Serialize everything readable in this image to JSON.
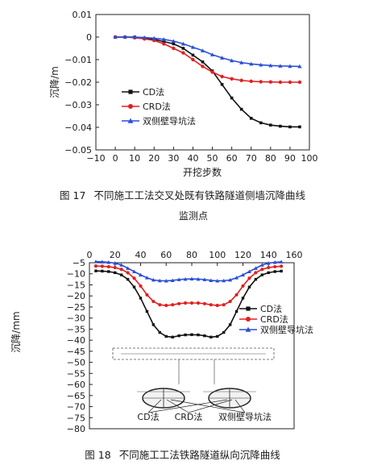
{
  "chart_data": [
    {
      "type": "line",
      "xlabel": "开挖步数",
      "ylabel": "沉降/m",
      "xlim": [
        -10,
        100
      ],
      "ylim": [
        -0.05,
        0.01
      ],
      "xticks": [
        -10,
        0,
        10,
        20,
        30,
        40,
        50,
        60,
        70,
        80,
        90,
        100
      ],
      "xtick_labels": [
        "−10",
        "0",
        "10",
        "20",
        "30",
        "40",
        "50",
        "60",
        "70",
        "80",
        "90",
        "100"
      ],
      "yticks": [
        0.01,
        0,
        -0.01,
        -0.02,
        -0.03,
        -0.04,
        -0.05
      ],
      "ytick_labels": [
        "0.01",
        "0",
        "−0.01",
        "−0.02",
        "−0.03",
        "−0.04",
        "−0.05"
      ],
      "grid": false,
      "legend_position": "lower-left",
      "x": [
        0,
        5,
        10,
        15,
        20,
        25,
        30,
        35,
        40,
        45,
        50,
        55,
        60,
        65,
        70,
        75,
        80,
        85,
        90,
        95
      ],
      "series": [
        {
          "name": "CD法",
          "color": "#111111",
          "marker": "square",
          "values": [
            0,
            0,
            0,
            -0.0005,
            -0.001,
            -0.002,
            -0.003,
            -0.005,
            -0.008,
            -0.011,
            -0.015,
            -0.021,
            -0.027,
            -0.032,
            -0.036,
            -0.038,
            -0.039,
            -0.0395,
            -0.0398,
            -0.0398
          ]
        },
        {
          "name": "CRD法",
          "color": "#e02020",
          "marker": "circle",
          "values": [
            0,
            0,
            -0.0003,
            -0.0008,
            -0.0015,
            -0.003,
            -0.005,
            -0.007,
            -0.01,
            -0.013,
            -0.0155,
            -0.0175,
            -0.0185,
            -0.0192,
            -0.0196,
            -0.0198,
            -0.0199,
            -0.02,
            -0.02,
            -0.02
          ]
        },
        {
          "name": "双侧壁导坑法",
          "color": "#2a4fd6",
          "marker": "triangle",
          "values": [
            0,
            0,
            0,
            -0.0002,
            -0.0005,
            -0.001,
            -0.0018,
            -0.003,
            -0.0045,
            -0.006,
            -0.0078,
            -0.0092,
            -0.0104,
            -0.0113,
            -0.0119,
            -0.0123,
            -0.0126,
            -0.0128,
            -0.0129,
            -0.013
          ]
        }
      ]
    },
    {
      "type": "line",
      "xlabel": "监测点",
      "ylabel": "沉降/mm",
      "xlim": [
        0,
        160
      ],
      "ylim": [
        -80,
        -5
      ],
      "xticks": [
        0,
        20,
        40,
        60,
        80,
        100,
        120,
        140,
        160
      ],
      "xtick_labels": [
        "0",
        "20",
        "40",
        "60",
        "80",
        "100",
        "120",
        "140",
        "160"
      ],
      "yticks": [
        -5,
        -10,
        -15,
        -20,
        -25,
        -30,
        -35,
        -40,
        -45,
        -50,
        -55,
        -60,
        -65,
        -70,
        -75,
        -80
      ],
      "ytick_labels": [
        "−5",
        "−10",
        "−15",
        "−20",
        "−25",
        "−30",
        "−35",
        "−40",
        "−45",
        "−50",
        "−55",
        "−60",
        "−65",
        "−70",
        "−75",
        "−80"
      ],
      "grid": false,
      "legend_position": "right",
      "x": [
        5,
        10,
        15,
        20,
        25,
        30,
        35,
        40,
        45,
        50,
        55,
        60,
        65,
        70,
        75,
        80,
        85,
        90,
        95,
        100,
        105,
        110,
        115,
        120,
        125,
        130,
        135,
        140,
        145,
        150
      ],
      "series": [
        {
          "name": "CD法",
          "color": "#111111",
          "marker": "square",
          "values": [
            -8.7,
            -8.8,
            -9,
            -9.5,
            -10.5,
            -12.5,
            -16,
            -21,
            -27,
            -33,
            -36.5,
            -38.3,
            -38.6,
            -38,
            -37.6,
            -37.5,
            -37.6,
            -38,
            -38.6,
            -38.3,
            -36.5,
            -33,
            -27,
            -21,
            -16,
            -12.5,
            -10.5,
            -9.5,
            -9,
            -8.8
          ]
        },
        {
          "name": "CRD法",
          "color": "#e02020",
          "marker": "circle",
          "values": [
            -6.5,
            -6.6,
            -6.8,
            -7.2,
            -8,
            -9.5,
            -12,
            -15.5,
            -19.5,
            -22.5,
            -24,
            -24.3,
            -24,
            -23.5,
            -23.2,
            -23.2,
            -23.2,
            -23.5,
            -24,
            -24.3,
            -24,
            -22.5,
            -19.5,
            -15.5,
            -12,
            -9.5,
            -8,
            -7.2,
            -6.8,
            -6.6
          ]
        },
        {
          "name": "双侧壁导坑法",
          "color": "#2a4fd6",
          "marker": "triangle",
          "values": [
            -4.5,
            -4.6,
            -4.8,
            -5.2,
            -6,
            -7.5,
            -9,
            -10.5,
            -11.8,
            -12.8,
            -13.1,
            -13.2,
            -13,
            -12.6,
            -12.4,
            -12.3,
            -12.4,
            -12.6,
            -13,
            -13.2,
            -13.1,
            -12.8,
            -11.8,
            -10.5,
            -9,
            -7.5,
            -6,
            -5.2,
            -4.8,
            -4.6
          ]
        }
      ],
      "schematic_labels": [
        "CD法",
        "CRD法",
        "双侧壁导坑法"
      ]
    }
  ],
  "captions": {
    "fig17_num": "图 17",
    "fig17_text": "不同施工工法交叉处既有铁路隧道侧墙沉降曲线",
    "fig18_num": "图 18",
    "fig18_text": "不同施工工法铁路隧道纵向沉降曲线"
  }
}
